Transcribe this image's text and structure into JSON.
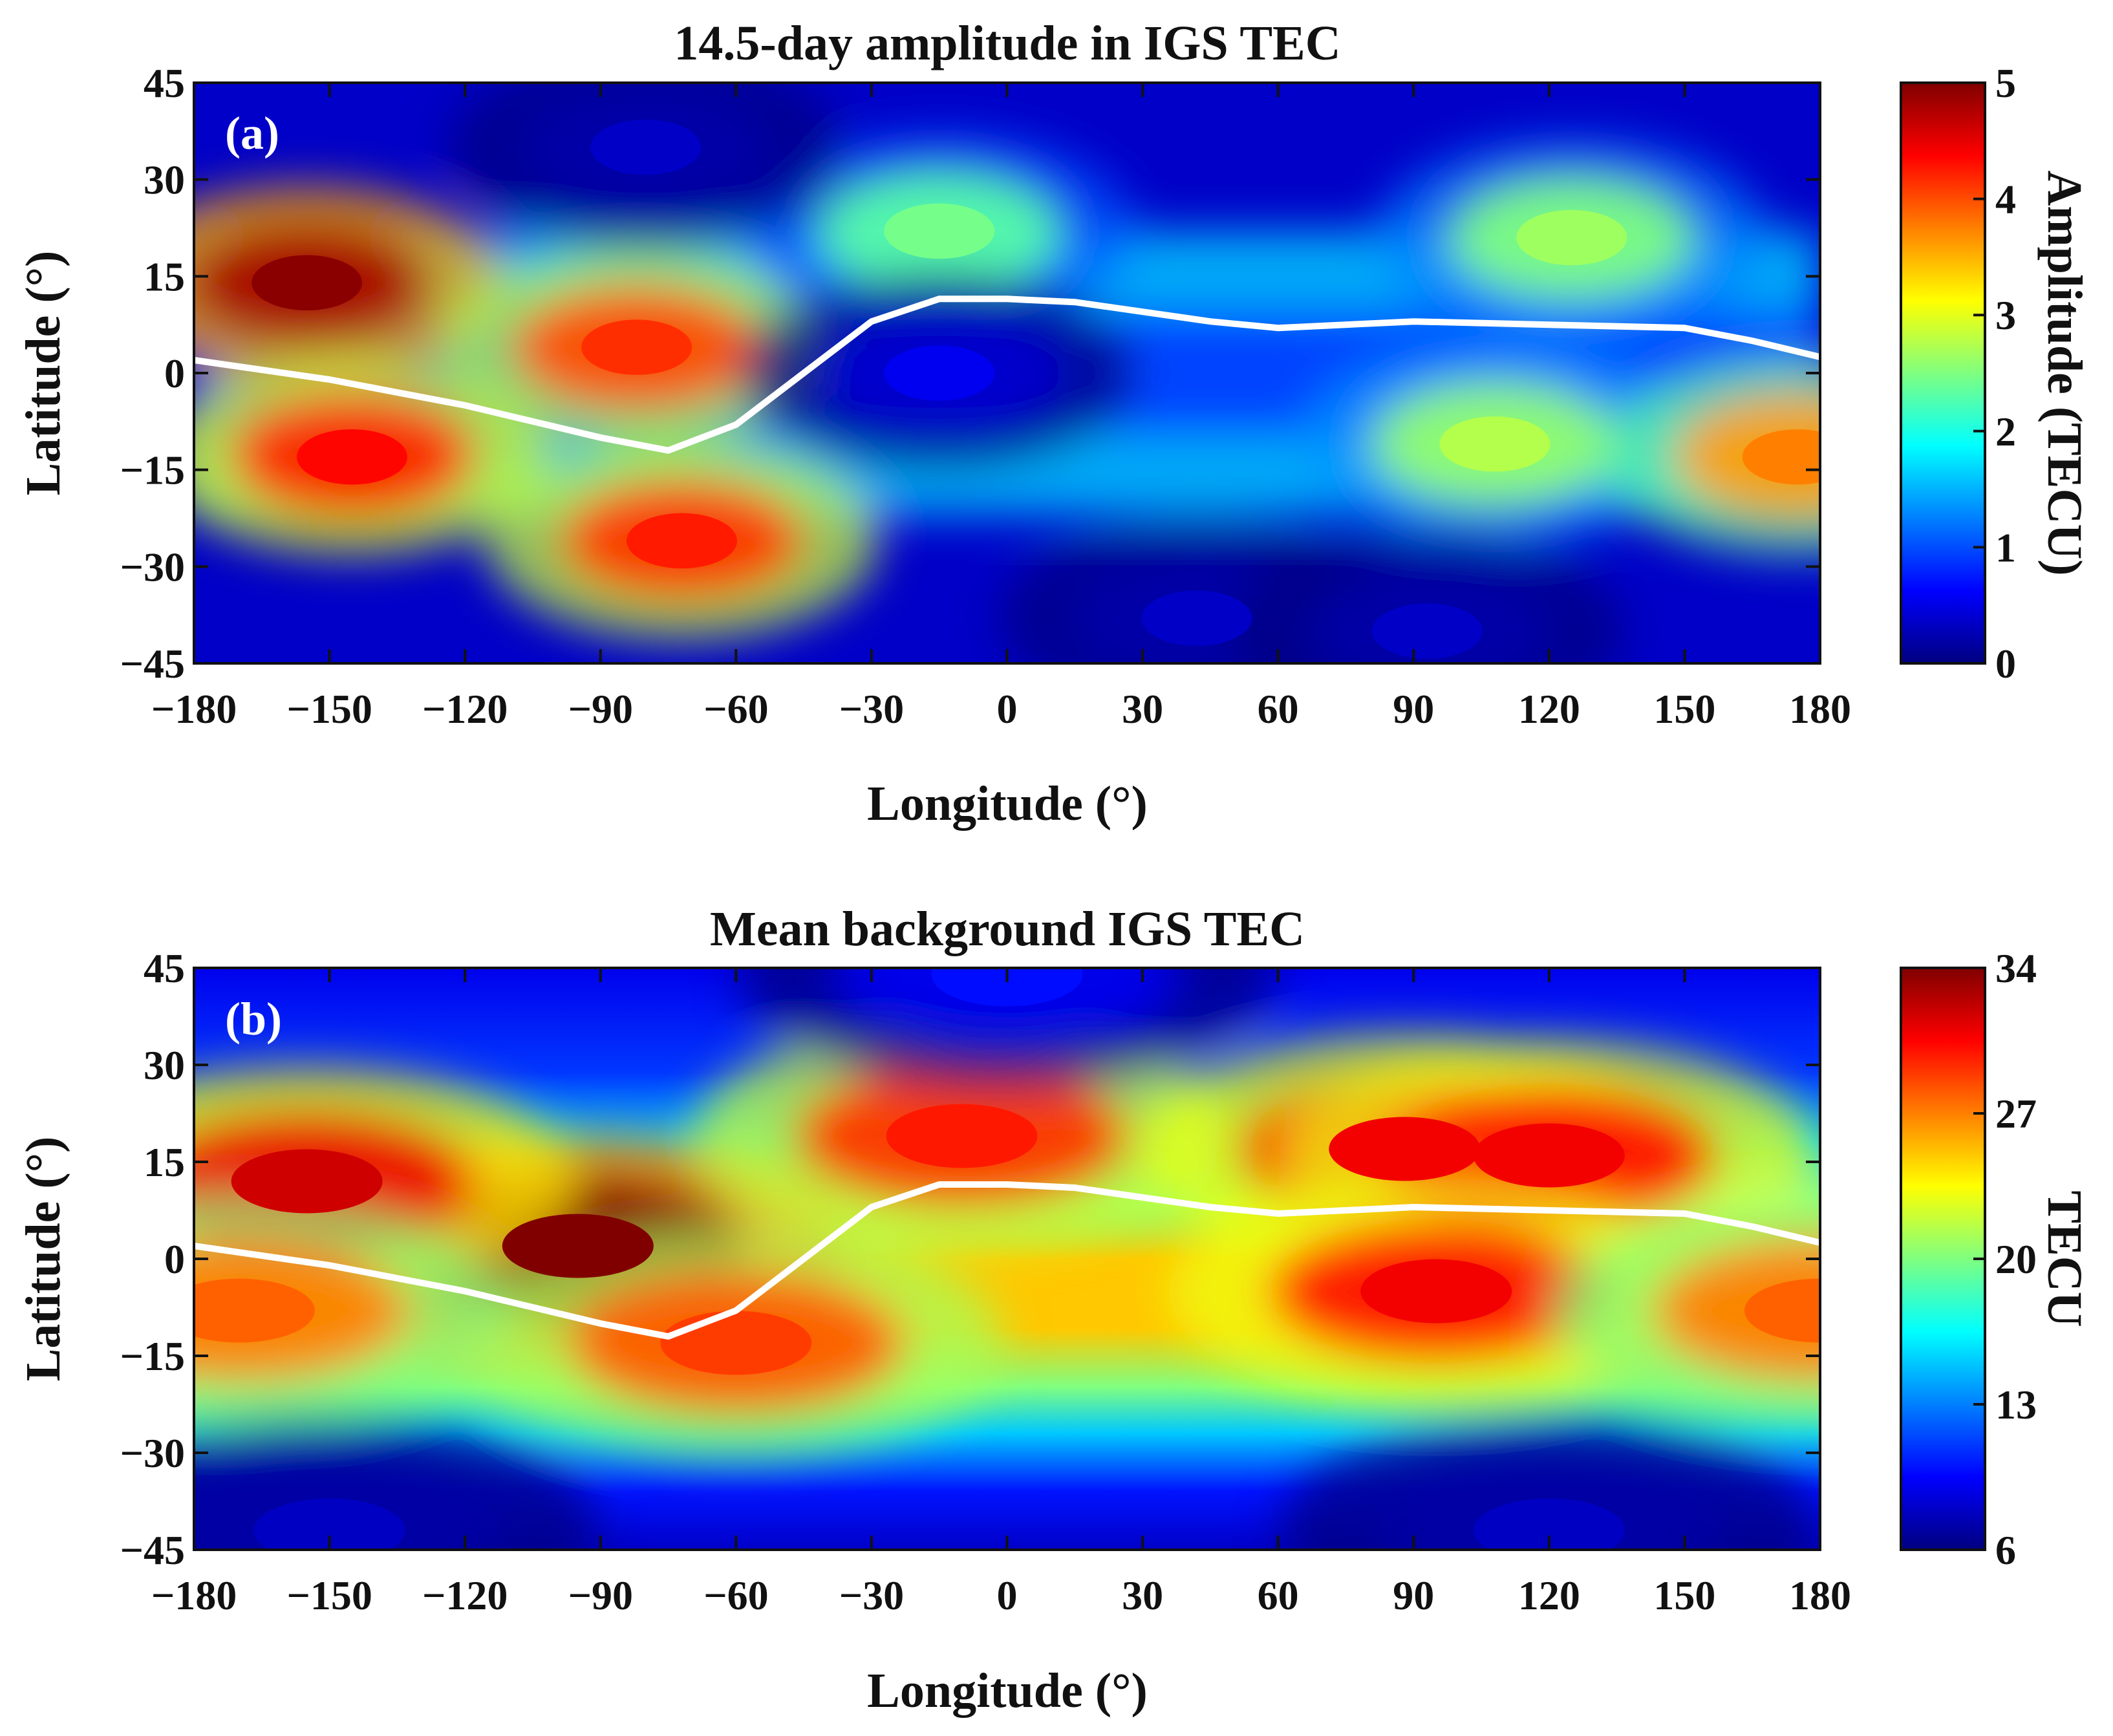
{
  "chart_data": [
    {
      "type": "heatmap",
      "panel_label": "(a)",
      "title": "14.5-day amplitude in IGS TEC",
      "xlabel": "Longitude (°)",
      "ylabel": "Latitude (°)",
      "xlim": [
        -180,
        180
      ],
      "ylim": [
        -45,
        45
      ],
      "xticks": [
        "−180",
        "−150",
        "−120",
        "−90",
        "−60",
        "−30",
        "0",
        "30",
        "60",
        "90",
        "120",
        "150",
        "180"
      ],
      "yticks": [
        "45",
        "30",
        "15",
        "0",
        "−15",
        "−30",
        "−45"
      ],
      "colorbar": {
        "label": "Amplitude (TECU)",
        "min": 0,
        "max": 5,
        "ticks": [
          "5",
          "4",
          "3",
          "2",
          "1",
          "0"
        ],
        "colormap": "jet"
      },
      "grid": false,
      "features": [
        {
          "lon": -155,
          "lat": 14,
          "value": 4.8
        },
        {
          "lon": -145,
          "lat": -13,
          "value": 4.2
        },
        {
          "lon": -82,
          "lat": 4,
          "value": 4.0
        },
        {
          "lon": -72,
          "lat": -26,
          "value": 4.1
        },
        {
          "lon": -15,
          "lat": 22,
          "value": 2.3
        },
        {
          "lon": 125,
          "lat": 21,
          "value": 2.5
        },
        {
          "lon": 108,
          "lat": -11,
          "value": 2.6
        },
        {
          "lon": 175,
          "lat": -13,
          "value": 3.6
        },
        {
          "lon": -80,
          "lat": 35,
          "value": 0.2
        },
        {
          "lon": 42,
          "lat": -38,
          "value": 0.2
        },
        {
          "lon": 93,
          "lat": -40,
          "value": 0.2
        },
        {
          "lon": -15,
          "lat": 0,
          "value": 0.4
        }
      ],
      "magnetic_equator": {
        "color": "#ffffff",
        "lon": [
          -180,
          -150,
          -120,
          -90,
          -75,
          -60,
          -45,
          -30,
          -15,
          0,
          15,
          30,
          45,
          60,
          90,
          120,
          150,
          165,
          180
        ],
        "lat": [
          2,
          -1,
          -5,
          -10,
          -12,
          -8,
          0,
          8,
          11.5,
          11.5,
          11,
          9.5,
          8,
          7,
          8,
          7.5,
          7,
          5,
          2.5
        ]
      }
    },
    {
      "type": "heatmap",
      "panel_label": "(b)",
      "title": "Mean background IGS TEC",
      "xlabel": "Longitude (°)",
      "ylabel": "Latitude (°)",
      "xlim": [
        -180,
        180
      ],
      "ylim": [
        -45,
        45
      ],
      "xticks": [
        "−180",
        "−150",
        "−120",
        "−90",
        "−60",
        "−30",
        "0",
        "30",
        "60",
        "90",
        "120",
        "150",
        "180"
      ],
      "yticks": [
        "45",
        "30",
        "15",
        "0",
        "−15",
        "−30",
        "−45"
      ],
      "colorbar": {
        "label": "TECU",
        "min": 6,
        "max": 34,
        "ticks": [
          "34",
          "27",
          "20",
          "13",
          "6"
        ],
        "colormap": "jet"
      },
      "grid": false,
      "features": [
        {
          "lon": -95,
          "lat": 2,
          "value": 34
        },
        {
          "lon": -155,
          "lat": 12,
          "value": 31
        },
        {
          "lon": -10,
          "lat": 19,
          "value": 29
        },
        {
          "lon": 88,
          "lat": 17,
          "value": 30
        },
        {
          "lon": 120,
          "lat": 16,
          "value": 30
        },
        {
          "lon": 95,
          "lat": -5,
          "value": 30
        },
        {
          "lon": -60,
          "lat": -13,
          "value": 28
        },
        {
          "lon": -170,
          "lat": -8,
          "value": 27
        },
        {
          "lon": 180,
          "lat": -8,
          "value": 27
        },
        {
          "lon": 0,
          "lat": 44,
          "value": 9
        },
        {
          "lon": -150,
          "lat": -42,
          "value": 7
        },
        {
          "lon": 120,
          "lat": -42,
          "value": 7
        }
      ],
      "magnetic_equator": {
        "color": "#ffffff",
        "lon": [
          -180,
          -150,
          -120,
          -90,
          -75,
          -60,
          -45,
          -30,
          -15,
          0,
          15,
          30,
          45,
          60,
          90,
          120,
          150,
          165,
          180
        ],
        "lat": [
          2,
          -1,
          -5,
          -10,
          -12,
          -8,
          0,
          8,
          11.5,
          11.5,
          11,
          9.5,
          8,
          7,
          8,
          7.5,
          7,
          5,
          2.5
        ]
      }
    }
  ]
}
